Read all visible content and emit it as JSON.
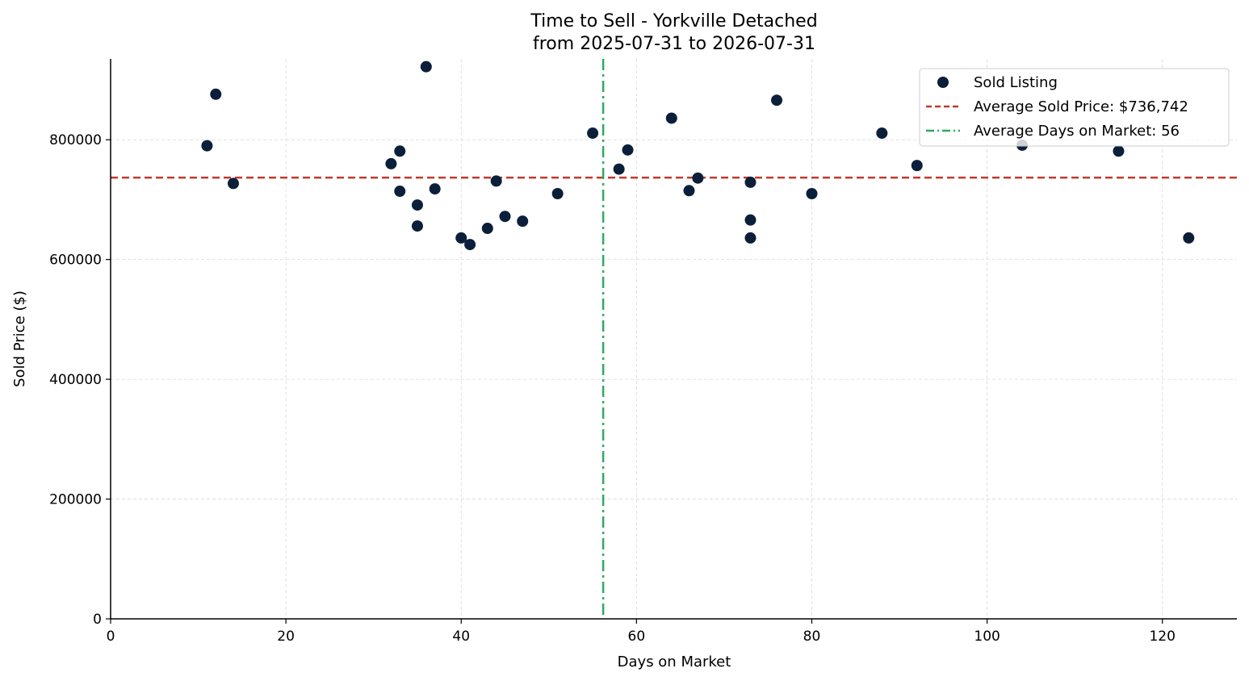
{
  "chart_data": {
    "type": "scatter",
    "title": "Time to Sell - Yorkville Detached",
    "subtitle": "from 2025-07-31 to 2026-07-31",
    "xlabel": "Days on Market",
    "ylabel": "Sold Price ($)",
    "xlim": [
      0,
      128.5
    ],
    "ylim": [
      0,
      935000
    ],
    "xticks": [
      0,
      20,
      40,
      60,
      80,
      100,
      120
    ],
    "yticks": [
      0,
      200000,
      400000,
      600000,
      800000
    ],
    "grid": true,
    "legend_position": "top-right",
    "series": [
      {
        "name": "Sold Listing",
        "color": "#0b1f3a",
        "points": [
          {
            "x": 11,
            "y": 790000
          },
          {
            "x": 12,
            "y": 876000
          },
          {
            "x": 14,
            "y": 727000
          },
          {
            "x": 32,
            "y": 760000
          },
          {
            "x": 33,
            "y": 781000
          },
          {
            "x": 33,
            "y": 714000
          },
          {
            "x": 35,
            "y": 691000
          },
          {
            "x": 35,
            "y": 656000
          },
          {
            "x": 36,
            "y": 922000
          },
          {
            "x": 37,
            "y": 718000
          },
          {
            "x": 40,
            "y": 636000
          },
          {
            "x": 41,
            "y": 625000
          },
          {
            "x": 43,
            "y": 652000
          },
          {
            "x": 44,
            "y": 731000
          },
          {
            "x": 45,
            "y": 672000
          },
          {
            "x": 47,
            "y": 664000
          },
          {
            "x": 51,
            "y": 710000
          },
          {
            "x": 55,
            "y": 811000
          },
          {
            "x": 58,
            "y": 751000
          },
          {
            "x": 59,
            "y": 783000
          },
          {
            "x": 64,
            "y": 836000
          },
          {
            "x": 66,
            "y": 715000
          },
          {
            "x": 67,
            "y": 736000
          },
          {
            "x": 73,
            "y": 729000
          },
          {
            "x": 73,
            "y": 666000
          },
          {
            "x": 73,
            "y": 636000
          },
          {
            "x": 76,
            "y": 866000
          },
          {
            "x": 80,
            "y": 710000
          },
          {
            "x": 88,
            "y": 811000
          },
          {
            "x": 92,
            "y": 757000
          },
          {
            "x": 104,
            "y": 791000
          },
          {
            "x": 115,
            "y": 781000
          },
          {
            "x": 123,
            "y": 636000
          }
        ]
      }
    ],
    "reference_lines": [
      {
        "orientation": "horizontal",
        "value": 736742,
        "label": "Average Sold Price: $736,742",
        "color": "#c0392b",
        "style": "dashed"
      },
      {
        "orientation": "vertical",
        "value": 56.2,
        "label": "Average Days on Market: 56",
        "color": "#2eaa62",
        "style": "dashdot"
      }
    ]
  }
}
